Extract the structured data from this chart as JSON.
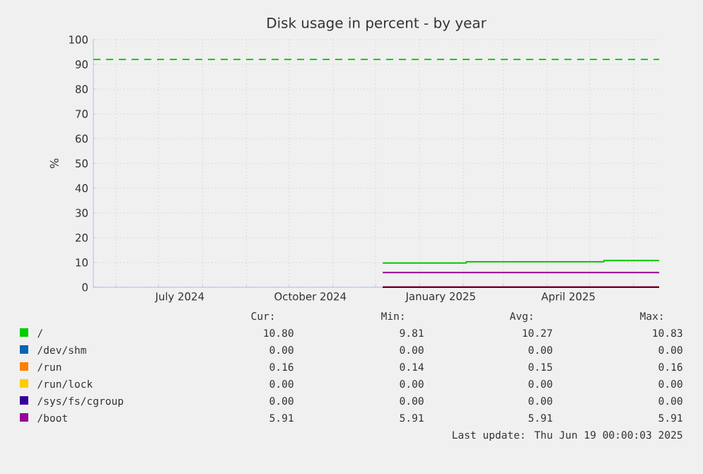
{
  "chart_data": {
    "type": "step",
    "title": "Disk usage in percent - by year",
    "ylabel": "%",
    "xlim": [
      "2024-05-16",
      "2025-06-19"
    ],
    "xticks": [
      {
        "value": "2024-06-01",
        "label": null
      },
      {
        "value": "2024-07-01",
        "label": null
      },
      {
        "value": "2024-08-01",
        "label": null
      },
      {
        "value": "2024-09-01",
        "label": null
      },
      {
        "value": "2024-10-01",
        "label": null
      },
      {
        "value": "2024-11-01",
        "label": null
      },
      {
        "value": "2024-12-01",
        "label": null
      },
      {
        "value": "2025-01-01",
        "label": null
      },
      {
        "value": "2025-02-01",
        "label": null
      },
      {
        "value": "2025-03-01",
        "label": null
      },
      {
        "value": "2025-04-01",
        "label": null
      },
      {
        "value": "2025-05-01",
        "label": null
      },
      {
        "value": "2025-06-01",
        "label": null
      },
      {
        "value": "2024-07-16",
        "label": "July 2024"
      },
      {
        "value": "2024-10-16",
        "label": "October 2024"
      },
      {
        "value": "2025-01-16",
        "label": "January 2025"
      },
      {
        "value": "2025-04-16",
        "label": "April 2025"
      }
    ],
    "ylim": [
      0,
      100
    ],
    "yticks": [
      0,
      10,
      20,
      30,
      40,
      50,
      60,
      70,
      80,
      90,
      100
    ],
    "grid": true,
    "legend": "bottom",
    "line_style": "solid",
    "series": [
      {
        "name": "/",
        "color": "#00cc00",
        "x": [
          "2024-12-06",
          "2025-02-03",
          "2025-05-11",
          "2025-06-19"
        ],
        "values": [
          9.8,
          10.3,
          10.8,
          10.8
        ]
      },
      {
        "name": "/dev/shm",
        "color": "#0066b3",
        "values": [
          null
        ]
      },
      {
        "name": "/run",
        "color": "#ff8000",
        "x": [
          "2024-12-06",
          "2025-06-19"
        ],
        "values": [
          0.2,
          0.2
        ]
      },
      {
        "name": "/run/lock",
        "color": "#ffcc00",
        "values": [
          null
        ]
      },
      {
        "name": "/sys/fs/cgroup",
        "color": "#330099",
        "x": [
          "2024-12-06",
          "2025-06-19"
        ],
        "values": [
          0,
          0
        ]
      },
      {
        "name": "/boot",
        "color": "#990099",
        "x": [
          "2024-12-06",
          "2025-06-19"
        ],
        "values": [
          5.9,
          5.9
        ]
      }
    ],
    "ref_lines": [
      {
        "axis": "y",
        "value": 92,
        "color": "#00cc00",
        "line_style": "dashed"
      }
    ],
    "annotations": [
      "Cur:",
      "Min:",
      "Avg:",
      "Max:",
      "10.80",
      "9.81",
      "10.27",
      "10.83",
      "0.00",
      "0.00",
      "0.00",
      "0.00",
      "0.16",
      "0.14",
      "0.15",
      "0.16",
      "0.00",
      "0.00",
      "0.00",
      "0.00",
      "0.00",
      "0.00",
      "0.00",
      "0.00",
      "5.91",
      "5.91",
      "5.91",
      "5.91",
      "Last update: Thu Jun 19 00:00:03 2025"
    ]
  }
}
